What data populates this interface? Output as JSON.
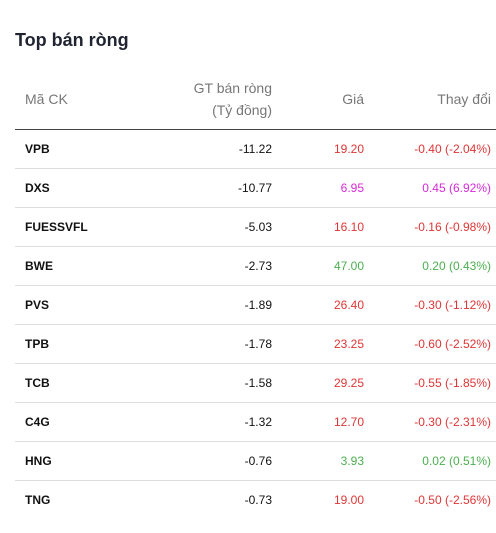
{
  "widget": {
    "title": "Top bán ròng",
    "columns": {
      "symbol": "Mã CK",
      "value_line1": "GT bán ròng",
      "value_line2": "(Tỷ đồng)",
      "price": "Giá",
      "change": "Thay đổi"
    },
    "colors": {
      "down": "#e03535",
      "up": "#4caf50",
      "ceiling": "#d62ad8"
    },
    "rows": [
      {
        "symbol": "VPB",
        "value": "-11.22",
        "price": "19.20",
        "change": "-0.40 (-2.04%)",
        "trend": "down"
      },
      {
        "symbol": "DXS",
        "value": "-10.77",
        "price": "6.95",
        "change": "0.45 (6.92%)",
        "trend": "ceil"
      },
      {
        "symbol": "FUESSVFL",
        "value": "-5.03",
        "price": "16.10",
        "change": "-0.16 (-0.98%)",
        "trend": "down"
      },
      {
        "symbol": "BWE",
        "value": "-2.73",
        "price": "47.00",
        "change": "0.20 (0.43%)",
        "trend": "up"
      },
      {
        "symbol": "PVS",
        "value": "-1.89",
        "price": "26.40",
        "change": "-0.30 (-1.12%)",
        "trend": "down"
      },
      {
        "symbol": "TPB",
        "value": "-1.78",
        "price": "23.25",
        "change": "-0.60 (-2.52%)",
        "trend": "down"
      },
      {
        "symbol": "TCB",
        "value": "-1.58",
        "price": "29.25",
        "change": "-0.55 (-1.85%)",
        "trend": "down"
      },
      {
        "symbol": "C4G",
        "value": "-1.32",
        "price": "12.70",
        "change": "-0.30 (-2.31%)",
        "trend": "down"
      },
      {
        "symbol": "HNG",
        "value": "-0.76",
        "price": "3.93",
        "change": "0.02 (0.51%)",
        "trend": "up"
      },
      {
        "symbol": "TNG",
        "value": "-0.73",
        "price": "19.00",
        "change": "-0.50 (-2.56%)",
        "trend": "down"
      }
    ]
  }
}
